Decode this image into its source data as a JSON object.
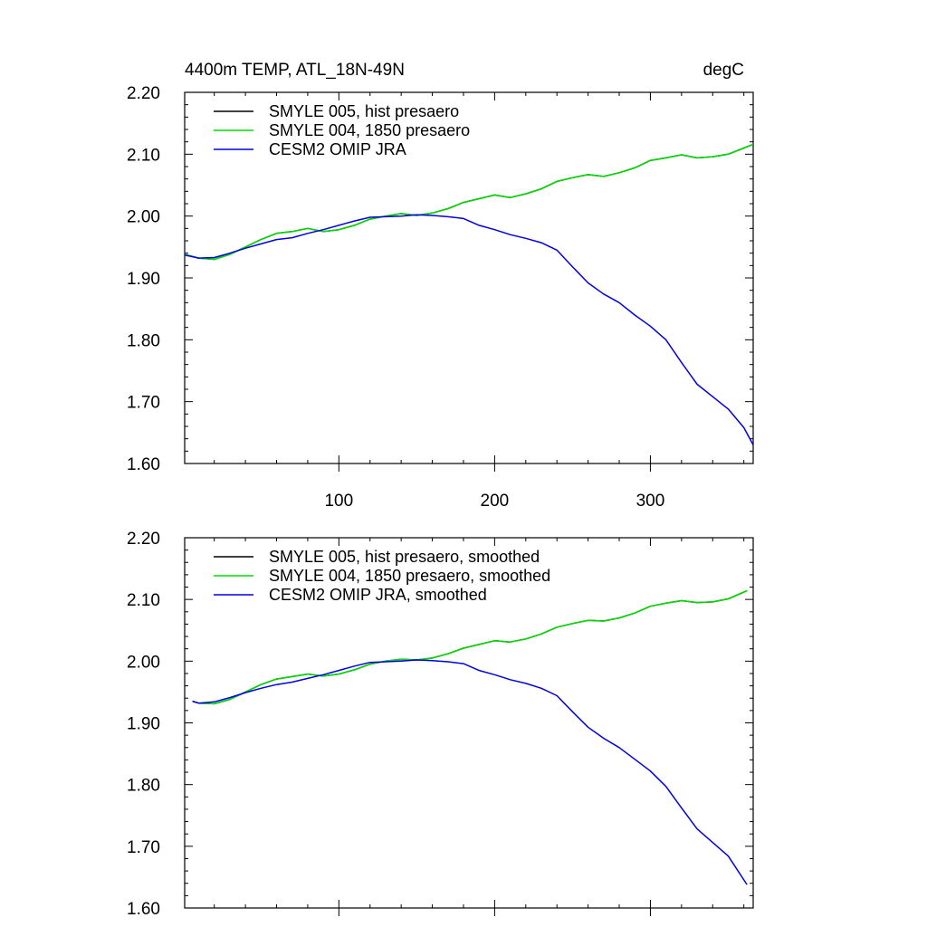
{
  "figure": {
    "title_left": "4400m TEMP, ATL_18N-49N",
    "title_right": "degC"
  },
  "chart_data": [
    {
      "type": "line",
      "title": "4400m TEMP, ATL_18N-49N",
      "units": "degC",
      "xlabel": "",
      "ylabel": "",
      "xlim": [
        1,
        366
      ],
      "ylim": [
        1.6,
        2.2
      ],
      "x_ticks": [
        100,
        200,
        300
      ],
      "x_tick_labels": [
        "100",
        "200",
        "300"
      ],
      "y_ticks": [
        1.6,
        1.7,
        1.8,
        1.9,
        2.0,
        2.1,
        2.2
      ],
      "y_tick_labels": [
        "1.60",
        "1.70",
        "1.80",
        "1.90",
        "2.00",
        "2.10",
        "2.20"
      ],
      "grid": false,
      "legend_position": "top-left",
      "x": [
        1,
        10,
        20,
        30,
        40,
        50,
        60,
        70,
        80,
        90,
        100,
        110,
        120,
        130,
        140,
        150,
        160,
        170,
        180,
        190,
        200,
        210,
        220,
        230,
        240,
        250,
        260,
        270,
        280,
        290,
        300,
        310,
        320,
        330,
        340,
        350,
        360,
        366
      ],
      "series": [
        {
          "name": "SMYLE 005, hist presaero",
          "color": "#000000",
          "values": [
            1.938,
            1.932,
            1.93,
            1.938,
            1.95,
            1.962,
            1.972,
            1.975,
            1.98,
            1.975,
            1.978,
            1.985,
            1.995,
            2.0,
            2.004,
            2.001,
            2.005,
            2.012,
            2.022,
            2.028,
            2.034,
            2.03,
            2.036,
            2.044,
            2.056,
            2.062,
            2.067,
            2.064,
            2.07,
            2.078,
            2.09,
            2.094,
            2.099,
            2.094,
            2.096,
            2.1,
            2.11,
            2.116
          ]
        },
        {
          "name": "SMYLE 004, 1850 presaero",
          "color": "#00dd00",
          "values": [
            1.938,
            1.932,
            1.93,
            1.938,
            1.95,
            1.962,
            1.972,
            1.975,
            1.98,
            1.975,
            1.978,
            1.985,
            1.995,
            2.0,
            2.004,
            2.001,
            2.005,
            2.012,
            2.022,
            2.028,
            2.034,
            2.03,
            2.036,
            2.044,
            2.056,
            2.062,
            2.067,
            2.064,
            2.07,
            2.078,
            2.09,
            2.094,
            2.099,
            2.094,
            2.096,
            2.1,
            2.11,
            2.116
          ]
        },
        {
          "name": "CESM2 OMIP JRA",
          "color": "#0000dd",
          "values": [
            1.937,
            1.932,
            1.933,
            1.94,
            1.948,
            1.955,
            1.962,
            1.965,
            1.972,
            1.978,
            1.985,
            1.992,
            1.998,
            1.999,
            2.0,
            2.002,
            2.001,
            1.999,
            1.996,
            1.985,
            1.978,
            1.97,
            1.964,
            1.957,
            1.945,
            1.918,
            1.892,
            1.874,
            1.86,
            1.84,
            1.822,
            1.8,
            1.763,
            1.728,
            1.708,
            1.688,
            1.658,
            1.63
          ]
        }
      ]
    },
    {
      "type": "line",
      "title": "",
      "xlabel": "",
      "ylabel": "",
      "xlim": [
        1,
        366
      ],
      "ylim": [
        1.6,
        2.2
      ],
      "x_ticks": [
        100,
        200,
        300
      ],
      "x_tick_labels": [],
      "y_ticks": [
        1.6,
        1.7,
        1.8,
        1.9,
        2.0,
        2.1,
        2.2
      ],
      "y_tick_labels": [
        "1.60",
        "1.70",
        "1.80",
        "1.90",
        "2.00",
        "2.10",
        "2.20"
      ],
      "grid": false,
      "legend_position": "top-left",
      "x": [
        6,
        10,
        20,
        30,
        40,
        50,
        60,
        70,
        80,
        90,
        100,
        110,
        120,
        130,
        140,
        150,
        160,
        170,
        180,
        190,
        200,
        210,
        220,
        230,
        240,
        250,
        260,
        270,
        280,
        290,
        300,
        310,
        320,
        330,
        340,
        350,
        362
      ],
      "series": [
        {
          "name": "SMYLE 005, hist presaero, smoothed",
          "color": "#000000",
          "values": [
            1.935,
            1.932,
            1.931,
            1.938,
            1.95,
            1.962,
            1.971,
            1.975,
            1.979,
            1.976,
            1.979,
            1.986,
            1.995,
            2.0,
            2.003,
            2.002,
            2.005,
            2.012,
            2.021,
            2.027,
            2.033,
            2.031,
            2.036,
            2.044,
            2.055,
            2.061,
            2.066,
            2.065,
            2.07,
            2.078,
            2.089,
            2.094,
            2.098,
            2.095,
            2.096,
            2.101,
            2.114
          ]
        },
        {
          "name": "SMYLE 004, 1850 presaero, smoothed",
          "color": "#00dd00",
          "values": [
            1.935,
            1.932,
            1.931,
            1.938,
            1.95,
            1.962,
            1.971,
            1.975,
            1.979,
            1.976,
            1.979,
            1.986,
            1.995,
            2.0,
            2.003,
            2.002,
            2.005,
            2.012,
            2.021,
            2.027,
            2.033,
            2.031,
            2.036,
            2.044,
            2.055,
            2.061,
            2.066,
            2.065,
            2.07,
            2.078,
            2.089,
            2.094,
            2.098,
            2.095,
            2.096,
            2.101,
            2.114
          ]
        },
        {
          "name": "CESM2 OMIP JRA, smoothed",
          "color": "#0000dd",
          "values": [
            1.935,
            1.932,
            1.934,
            1.941,
            1.949,
            1.956,
            1.962,
            1.966,
            1.972,
            1.978,
            1.985,
            1.992,
            1.998,
            1.999,
            2.0,
            2.002,
            2.001,
            1.999,
            1.996,
            1.985,
            1.978,
            1.97,
            1.964,
            1.956,
            1.944,
            1.918,
            1.893,
            1.875,
            1.86,
            1.841,
            1.822,
            1.797,
            1.762,
            1.728,
            1.706,
            1.684,
            1.638
          ]
        }
      ]
    }
  ]
}
